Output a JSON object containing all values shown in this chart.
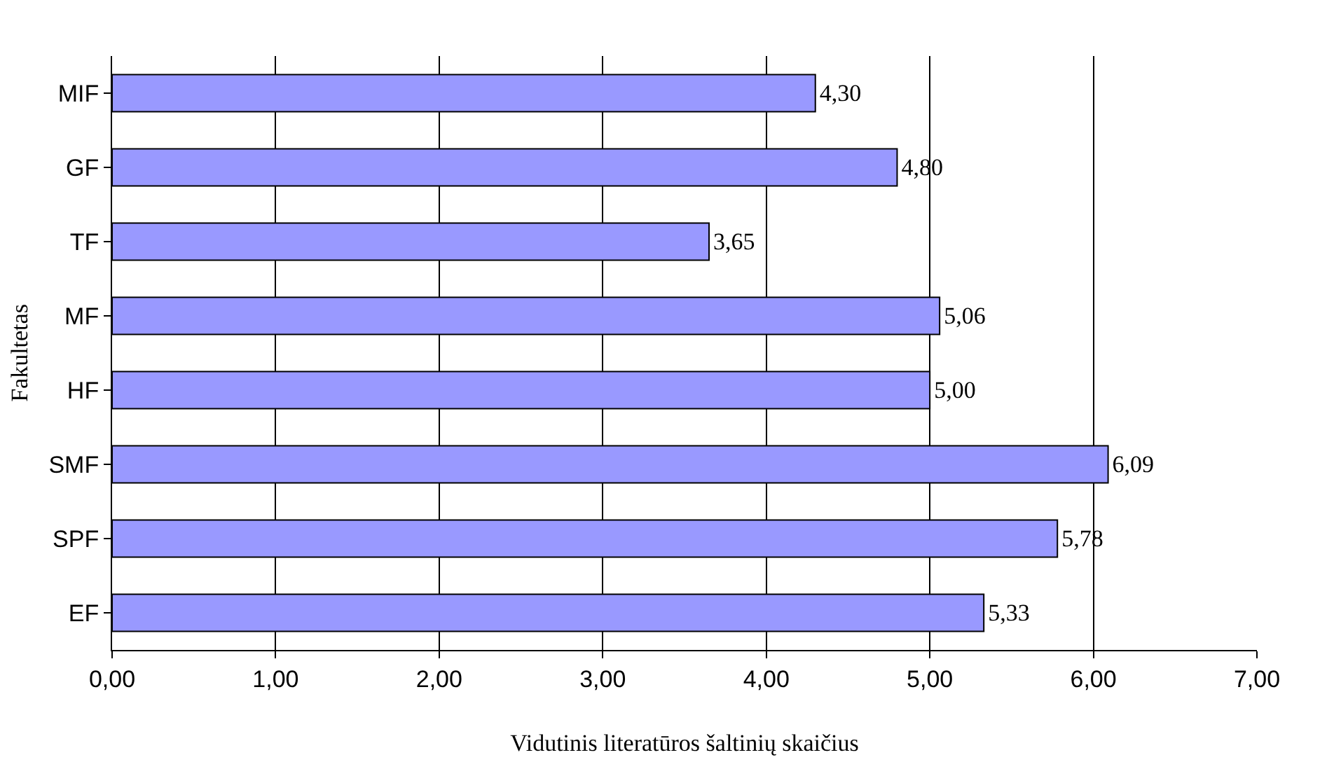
{
  "chart_data": {
    "type": "bar",
    "orientation": "horizontal",
    "categories": [
      "MIF",
      "GF",
      "TF",
      "MF",
      "HF",
      "SMF",
      "SPF",
      "EF"
    ],
    "values": [
      4.3,
      4.8,
      3.65,
      5.06,
      5.0,
      6.09,
      5.78,
      5.33
    ],
    "value_labels": [
      "4,30",
      "4,80",
      "3,65",
      "5,06",
      "5,00",
      "6,09",
      "5,78",
      "5,33"
    ],
    "color": "#9999ff",
    "xlabel": "Vidutinis literatūros šaltinių skaičius",
    "ylabel": "Fakultetas",
    "xlim": [
      0,
      7
    ],
    "xticks": [
      {
        "value": 0,
        "label": "0,00"
      },
      {
        "value": 1,
        "label": "1,00"
      },
      {
        "value": 2,
        "label": "2,00"
      },
      {
        "value": 3,
        "label": "3,00"
      },
      {
        "value": 4,
        "label": "4,00"
      },
      {
        "value": 5,
        "label": "5,00"
      },
      {
        "value": 6,
        "label": "6,00"
      },
      {
        "value": 7,
        "label": "7,00"
      }
    ],
    "grid": "x",
    "legend": false
  }
}
